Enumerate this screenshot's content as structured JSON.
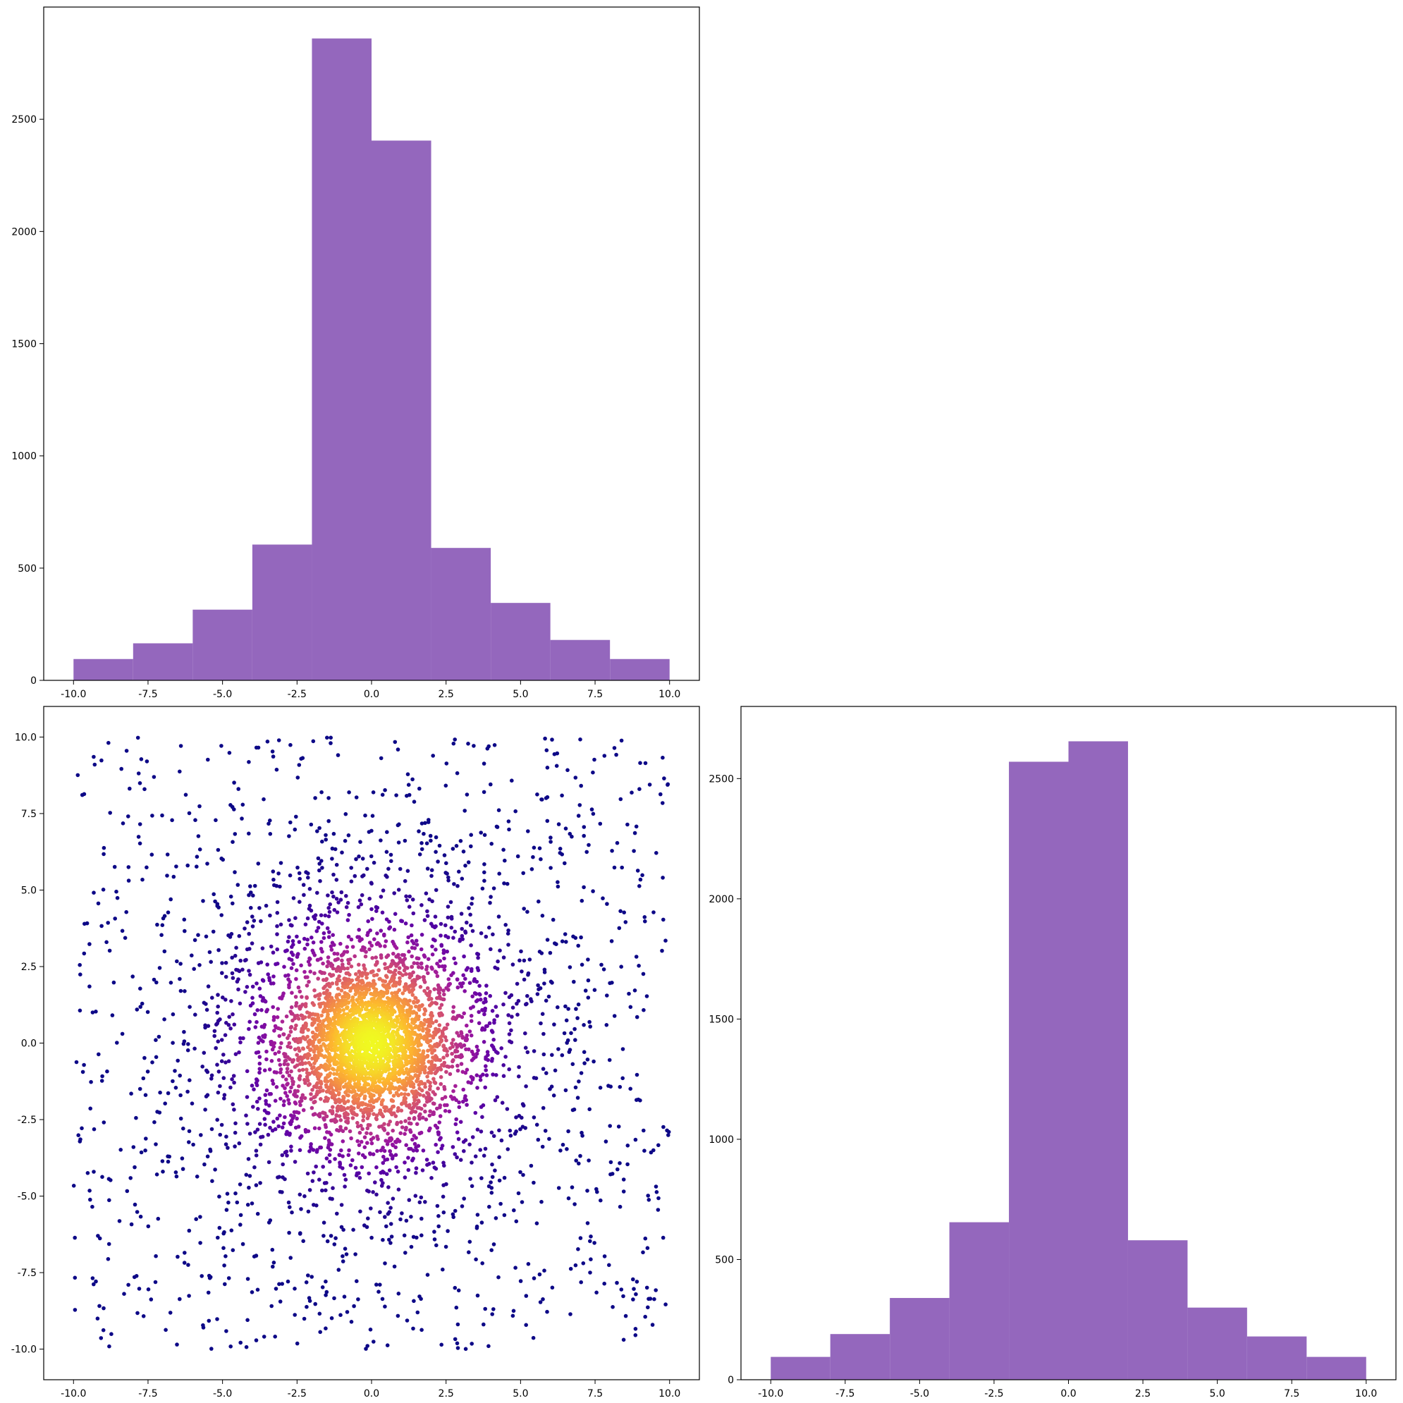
{
  "figure": {
    "layout": "corner-plot",
    "background": "#ffffff"
  },
  "chart_data": [
    {
      "type": "bar",
      "subtype": "histogram",
      "panel": "top-left",
      "title": "",
      "xlabel": "",
      "ylabel": "",
      "bin_edges": [
        -10,
        -8,
        -6,
        -4,
        -2,
        0,
        2,
        4,
        6,
        8,
        10
      ],
      "values": [
        95,
        165,
        315,
        605,
        2860,
        2405,
        590,
        345,
        180,
        95
      ],
      "color": "#9467bd",
      "xlim": [
        -11,
        11
      ],
      "ylim": [
        0,
        3000
      ],
      "xticks": [
        "-10.0",
        "-7.5",
        "-5.0",
        "-2.5",
        "0.0",
        "2.5",
        "5.0",
        "7.5",
        "10.0"
      ],
      "yticks": [
        "0",
        "500",
        "1000",
        "1500",
        "2000",
        "2500"
      ],
      "grid": false
    },
    {
      "type": "scatter",
      "panel": "bottom-left",
      "title": "",
      "xlabel": "",
      "ylabel": "",
      "colormap": "plasma",
      "color_encoding": "point density (dark purple = sparse, yellow = dense center)",
      "colormap_stops": [
        "#0d0887",
        "#5c01a6",
        "#9c179e",
        "#cc4778",
        "#ed7953",
        "#fdb42f",
        "#f0f921"
      ],
      "approx_points": 5000,
      "distribution": "dense core centered at (0, 0) with a roughly uniform sparse halo extending to ±10 on both axes",
      "center": [
        0.0,
        0.0
      ],
      "xlim": [
        -11,
        11
      ],
      "ylim": [
        -11,
        11
      ],
      "xticks": [
        "-10.0",
        "-7.5",
        "-5.0",
        "-2.5",
        "0.0",
        "2.5",
        "5.0",
        "7.5",
        "10.0"
      ],
      "yticks": [
        "-10.0",
        "-7.5",
        "-5.0",
        "-2.5",
        "0.0",
        "2.5",
        "5.0",
        "7.5",
        "10.0"
      ],
      "grid": false
    },
    {
      "type": "bar",
      "subtype": "histogram",
      "panel": "bottom-right",
      "title": "",
      "xlabel": "",
      "ylabel": "",
      "bin_edges": [
        -10,
        -8,
        -6,
        -4,
        -2,
        0,
        2,
        4,
        6,
        8,
        10
      ],
      "values": [
        95,
        190,
        340,
        655,
        2570,
        2655,
        580,
        300,
        180,
        95
      ],
      "color": "#9467bd",
      "xlim": [
        -11,
        11
      ],
      "ylim": [
        0,
        2800
      ],
      "xticks": [
        "-10.0",
        "-7.5",
        "-5.0",
        "-2.5",
        "0.0",
        "2.5",
        "5.0",
        "7.5",
        "10.0"
      ],
      "yticks": [
        "0",
        "500",
        "1000",
        "1500",
        "2000",
        "2500"
      ],
      "grid": false
    }
  ]
}
